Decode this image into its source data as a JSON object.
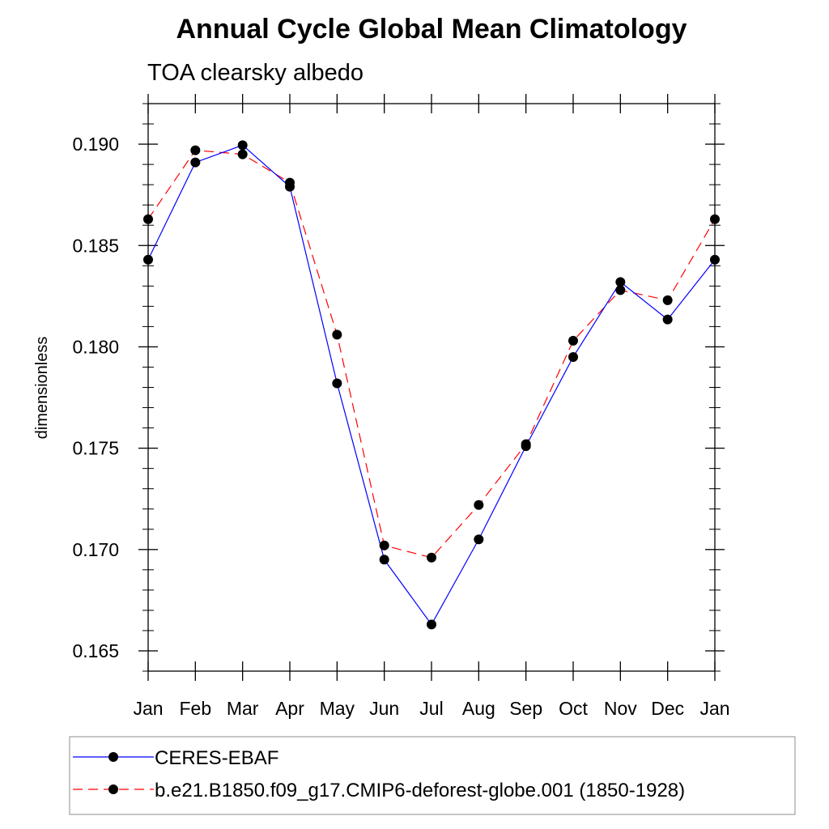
{
  "chart_data": {
    "type": "line",
    "title": "Annual Cycle Global Mean Climatology",
    "subtitle": "TOA clearsky albedo",
    "xlabel": "",
    "ylabel": "dimensionless",
    "categories": [
      "Jan",
      "Feb",
      "Mar",
      "Apr",
      "May",
      "Jun",
      "Jul",
      "Aug",
      "Sep",
      "Oct",
      "Nov",
      "Dec",
      "Jan"
    ],
    "yticks": [
      "0.165",
      "0.170",
      "0.175",
      "0.180",
      "0.185",
      "0.190"
    ],
    "ylim": [
      0.164,
      0.192
    ],
    "grid": false,
    "legend_position": "bottom",
    "series": [
      {
        "name": "CERES-EBAF",
        "color": "#0000ff",
        "line_style": "solid",
        "marker": "filled-circle",
        "values": [
          0.1843,
          0.1891,
          0.18995,
          0.1879,
          0.1782,
          0.1695,
          0.1663,
          0.1705,
          0.1751,
          0.1795,
          0.1832,
          0.18135,
          0.1843
        ]
      },
      {
        "name": "b.e21.B1850.f09_g17.CMIP6-deforest-globe.001 (1850-1928)",
        "color": "#ff0000",
        "line_style": "dashed",
        "marker": "filled-circle",
        "values": [
          0.1863,
          0.1897,
          0.1895,
          0.1881,
          0.1806,
          0.1702,
          0.1696,
          0.1722,
          0.1752,
          0.1803,
          0.1828,
          0.1823,
          0.1863
        ]
      }
    ]
  }
}
